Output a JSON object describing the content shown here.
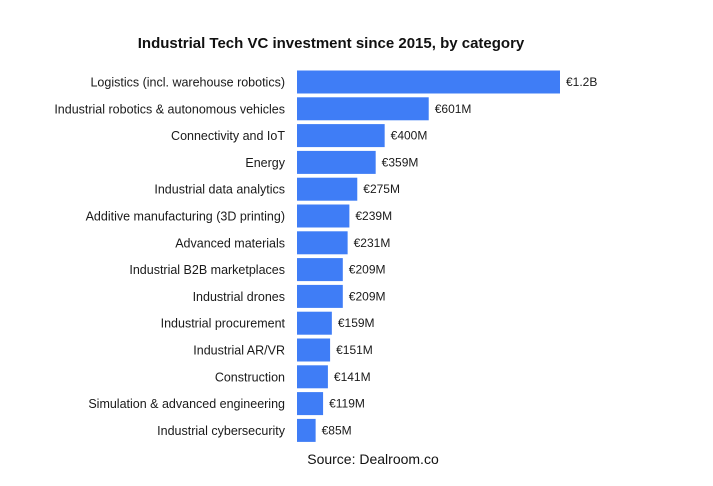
{
  "chart_data": {
    "type": "bar",
    "orientation": "horizontal",
    "title": "Industrial Tech VC investment since 2015, by category",
    "source": "Source: Dealroom.co",
    "unit": "€M",
    "bar_color": "#3f7df6",
    "xlim": [
      0,
      1200
    ],
    "grid": false,
    "legend": "none",
    "categories": [
      "Logistics (incl. warehouse robotics)",
      "Industrial robotics & autonomous vehicles",
      "Connectivity and IoT",
      "Energy",
      "Industrial data analytics",
      "Additive manufacturing (3D printing)",
      "Advanced materials",
      "Industrial B2B marketplaces",
      "Industrial drones",
      "Industrial procurement",
      "Industrial AR/VR",
      "Construction",
      "Simulation & advanced engineering",
      "Industrial cybersecurity"
    ],
    "values": [
      1200,
      601,
      400,
      359,
      275,
      239,
      231,
      209,
      209,
      159,
      151,
      141,
      119,
      85
    ],
    "value_labels": [
      "€1.2B",
      "€601M",
      "€400M",
      "€359M",
      "€275M",
      "€239M",
      "€231M",
      "€209M",
      "€209M",
      "€159M",
      "€151M",
      "€141M",
      "€119M",
      "€85M"
    ]
  }
}
